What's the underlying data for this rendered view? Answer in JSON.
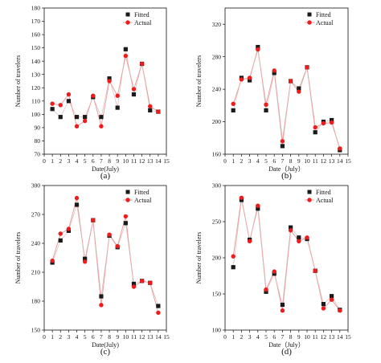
{
  "chart_data": [
    {
      "type": "line",
      "panel_label": "(a)",
      "xlabel": "Date(July)",
      "ylabel": "Number of travelers",
      "xlim": [
        0,
        15
      ],
      "ylim": [
        70,
        180
      ],
      "xticks": [
        0,
        1,
        2,
        3,
        4,
        5,
        6,
        7,
        8,
        9,
        10,
        11,
        12,
        13,
        14,
        15
      ],
      "yticks": [
        70,
        80,
        90,
        100,
        110,
        120,
        130,
        140,
        150,
        160,
        170,
        180
      ],
      "legend_position": "top-right",
      "x": [
        1,
        2,
        3,
        4,
        5,
        6,
        7,
        8,
        9,
        10,
        11,
        12,
        13,
        14
      ],
      "series": [
        {
          "name": "Fitted",
          "marker": "square",
          "values": [
            104,
            98,
            110,
            98,
            98,
            113,
            98,
            127,
            105,
            149,
            115,
            138,
            103,
            102
          ]
        },
        {
          "name": "Actual",
          "marker": "circle",
          "values": [
            108,
            107,
            115,
            91,
            95,
            114,
            91,
            125,
            114,
            144,
            119,
            138,
            106,
            102
          ]
        }
      ]
    },
    {
      "type": "line",
      "panel_label": "(b)",
      "xlabel": "Date（July）",
      "ylabel": "Number of travelers",
      "xlim": [
        0,
        15
      ],
      "ylim": [
        160,
        340
      ],
      "xticks": [
        0,
        1,
        2,
        3,
        4,
        5,
        6,
        7,
        8,
        9,
        10,
        11,
        12,
        13,
        14,
        15
      ],
      "yticks": [
        160,
        200,
        240,
        280,
        320
      ],
      "legend_position": "top-right",
      "x": [
        1,
        2,
        3,
        4,
        5,
        6,
        7,
        8,
        9,
        10,
        11,
        12,
        13,
        14
      ],
      "series": [
        {
          "name": "Fitted",
          "marker": "square",
          "values": [
            214,
            254,
            251,
            292,
            214,
            260,
            170,
            250,
            241,
            267,
            187,
            200,
            202,
            165
          ]
        },
        {
          "name": "Actual",
          "marker": "circle",
          "values": [
            222,
            252,
            254,
            289,
            221,
            263,
            176,
            250,
            237,
            267,
            193,
            198,
            199,
            167
          ]
        }
      ]
    },
    {
      "type": "line",
      "panel_label": "(c)",
      "xlabel": "Date(July)",
      "ylabel": "Number of travelers",
      "xlim": [
        0,
        15
      ],
      "ylim": [
        150,
        300
      ],
      "xticks": [
        0,
        1,
        2,
        3,
        4,
        5,
        6,
        7,
        8,
        9,
        10,
        11,
        12,
        13,
        14,
        15
      ],
      "yticks": [
        150,
        180,
        210,
        240,
        270,
        300
      ],
      "legend_position": "top-right",
      "x": [
        1,
        2,
        3,
        4,
        5,
        6,
        7,
        8,
        9,
        10,
        11,
        12,
        13,
        14
      ],
      "series": [
        {
          "name": "Fitted",
          "marker": "square",
          "values": [
            220,
            243,
            253,
            280,
            224,
            264,
            185,
            248,
            236,
            261,
            198,
            201,
            199,
            175
          ]
        },
        {
          "name": "Actual",
          "marker": "circle",
          "values": [
            222,
            250,
            255,
            287,
            221,
            264,
            176,
            249,
            237,
            268,
            195,
            201,
            199,
            168
          ]
        }
      ]
    },
    {
      "type": "line",
      "panel_label": "(d)",
      "xlabel": "Date（July）",
      "ylabel": "Number of travelers",
      "xlim": [
        0,
        15
      ],
      "ylim": [
        100,
        300
      ],
      "xticks": [
        0,
        1,
        2,
        3,
        4,
        5,
        6,
        7,
        8,
        9,
        10,
        11,
        12,
        13,
        14,
        15
      ],
      "yticks": [
        100,
        150,
        200,
        250,
        300
      ],
      "legend_position": "top-right",
      "x": [
        1,
        2,
        3,
        4,
        5,
        6,
        7,
        8,
        9,
        10,
        11,
        12,
        13,
        14
      ],
      "series": [
        {
          "name": "Fitted",
          "marker": "square",
          "values": [
            187,
            280,
            225,
            268,
            153,
            178,
            135,
            242,
            228,
            226,
            182,
            136,
            147,
            128
          ]
        },
        {
          "name": "Actual",
          "marker": "circle",
          "values": [
            202,
            283,
            223,
            272,
            156,
            181,
            127,
            238,
            223,
            228,
            182,
            130,
            142,
            127
          ]
        }
      ]
    }
  ],
  "colors": {
    "fitted_marker": "#1a1a1a",
    "actual_marker": "#ee1c1c",
    "connecting_line": "#e8a0a0",
    "axis": "#111111"
  }
}
